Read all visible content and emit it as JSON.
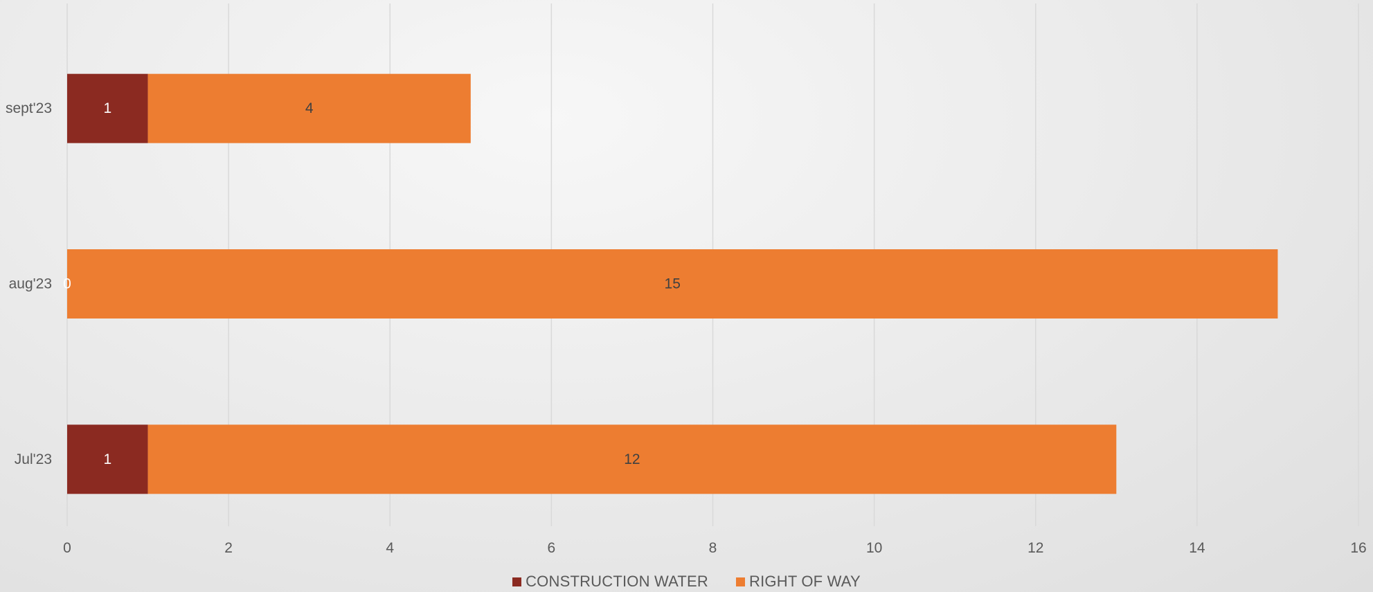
{
  "chart_data": {
    "type": "bar",
    "orientation": "horizontal",
    "stacked": true,
    "categories": [
      "Jul'23",
      "aug'23",
      "sept'23"
    ],
    "series": [
      {
        "name": "CONSTRUCTION WATER",
        "values": [
          1,
          0,
          1
        ],
        "color": "#8B2A21",
        "label_color": "#ffffff"
      },
      {
        "name": "RIGHT OF WAY",
        "values": [
          12,
          15,
          4
        ],
        "color": "#ED7D31",
        "label_color": "#404040"
      }
    ],
    "xlim": [
      0,
      16
    ],
    "x_ticks": [
      0,
      2,
      4,
      6,
      8,
      10,
      12,
      14,
      16
    ],
    "grid": true,
    "gridline_color": "#d9d9d9",
    "legend_position": "bottom",
    "title": "",
    "xlabel": "",
    "ylabel": ""
  }
}
